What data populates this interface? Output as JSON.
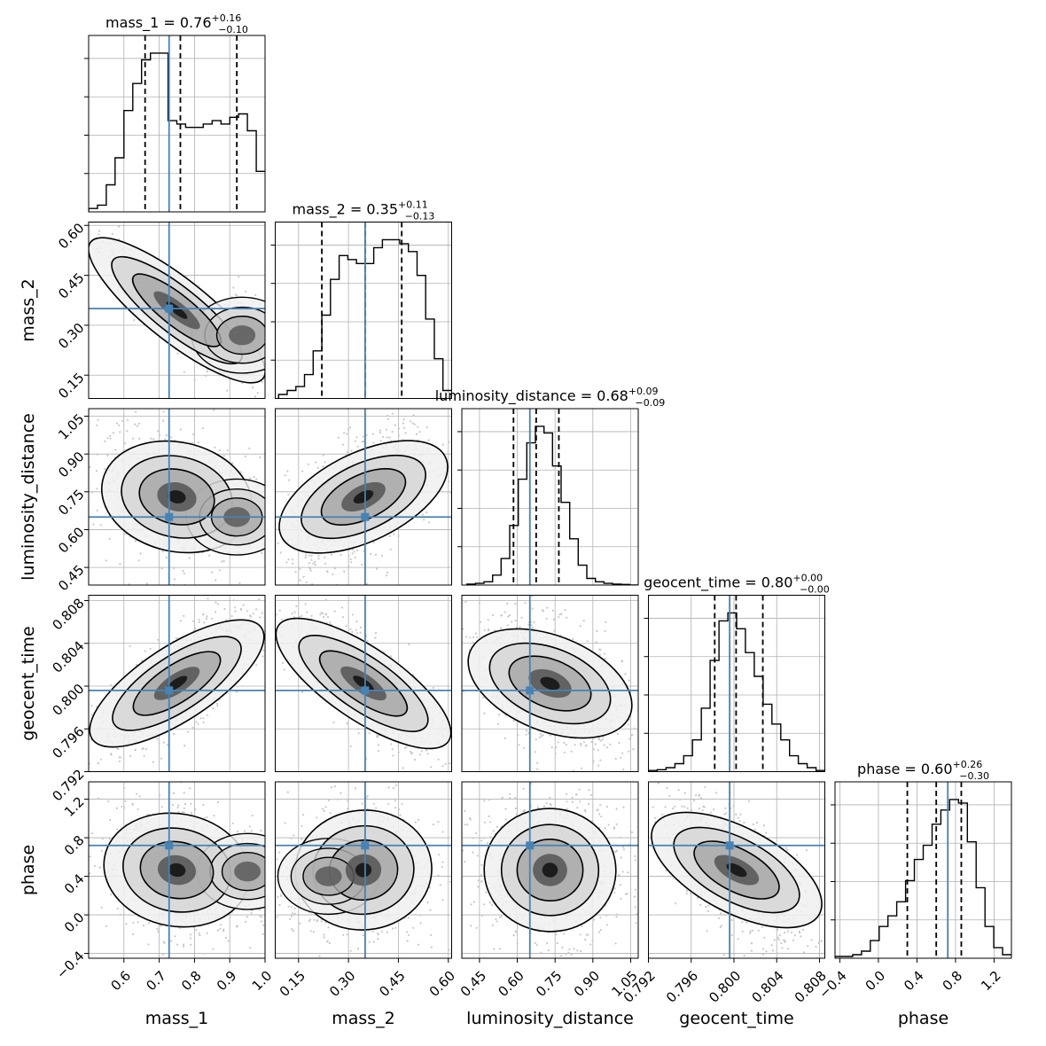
{
  "chart_data": {
    "type": "corner",
    "parameters": [
      "mass_1",
      "mass_2",
      "luminosity_distance",
      "geocent_time",
      "phase"
    ],
    "axis_labels": [
      "mass_1",
      "mass_2",
      "luminosity_distance",
      "geocent_time",
      "phase"
    ],
    "ranges": [
      [
        0.5,
        1.0
      ],
      [
        0.08,
        0.61
      ],
      [
        0.38,
        1.08
      ],
      [
        0.792,
        0.8085
      ],
      [
        -0.45,
        1.38
      ]
    ],
    "ticks": [
      [
        0.6,
        0.7,
        0.8,
        0.9,
        1.0
      ],
      [
        0.15,
        0.3,
        0.45,
        0.6
      ],
      [
        0.45,
        0.6,
        0.75,
        0.9,
        1.05
      ],
      [
        0.792,
        0.796,
        0.8,
        0.804,
        0.808
      ],
      [
        -0.4,
        0.0,
        0.4,
        0.8,
        1.2
      ]
    ],
    "tick_labels": [
      [
        "0.6",
        "0.7",
        "0.8",
        "0.9",
        "1.0"
      ],
      [
        "0.15",
        "0.30",
        "0.45",
        "0.60"
      ],
      [
        "0.45",
        "0.60",
        "0.75",
        "0.90",
        "1.05"
      ],
      [
        "0.792",
        "0.796",
        "0.800",
        "0.804",
        "0.808"
      ],
      [
        "−0.4",
        "0.0",
        "0.4",
        "0.8",
        "1.2"
      ]
    ],
    "titles": [
      {
        "name": "mass_1",
        "median": "0.76",
        "plus": "+0.16",
        "minus": "−0.10"
      },
      {
        "name": "mass_2",
        "median": "0.35",
        "plus": "+0.11",
        "minus": "−0.13"
      },
      {
        "name": "luminosity_distance",
        "median": "0.68",
        "plus": "+0.09",
        "minus": "−0.09"
      },
      {
        "name": "geocent_time",
        "median": "0.80",
        "plus": "+0.00",
        "minus": "−0.00"
      },
      {
        "name": "phase",
        "median": "0.60",
        "plus": "+0.26",
        "minus": "−0.30"
      }
    ],
    "truths": [
      0.728,
      0.35,
      0.65,
      0.7996,
      0.72
    ],
    "quantiles": [
      [
        0.66,
        0.76,
        0.92
      ],
      [
        0.22,
        0.35,
        0.46
      ],
      [
        0.585,
        0.675,
        0.765
      ],
      [
        0.7982,
        0.8002,
        0.8027
      ],
      [
        0.3,
        0.6,
        0.86
      ]
    ],
    "histograms": [
      {
        "edges_start": 0.5,
        "edges_end": 1.0,
        "counts": [
          1,
          2,
          8,
          16,
          30,
          38,
          45,
          47,
          47,
          27,
          26,
          25,
          25,
          26,
          27,
          26,
          28,
          29,
          24,
          12
        ]
      },
      {
        "edges_start": 0.09,
        "edges_end": 0.61,
        "counts": [
          1,
          2,
          3,
          6,
          12,
          21,
          30,
          36,
          35,
          34,
          34,
          38,
          40,
          40,
          39,
          37,
          31,
          20,
          10,
          2
        ]
      },
      {
        "edges_start": 0.4,
        "edges_end": 1.08,
        "counts": [
          0.3,
          0.5,
          1,
          3,
          8,
          18,
          32,
          43,
          48,
          46,
          36,
          25,
          14,
          6,
          2,
          1,
          0.5,
          0.3,
          0.2,
          0
        ]
      },
      {
        "edges_start": 0.792,
        "edges_end": 0.8085,
        "counts": [
          0.3,
          0.5,
          1,
          2,
          4,
          8,
          16,
          28,
          38,
          40,
          36,
          30,
          24,
          17,
          12,
          8,
          4,
          2,
          1,
          0.3
        ]
      },
      {
        "edges_start": -0.45,
        "edges_end": 1.38,
        "counts": [
          0.5,
          0.5,
          1,
          2,
          5,
          9,
          12,
          16,
          22,
          28,
          32,
          38,
          42,
          45,
          44,
          33,
          20,
          9,
          3,
          1
        ]
      }
    ],
    "densities": [
      {
        "row": 1,
        "col": 0,
        "corr": -0.92,
        "secondary": {
          "x": 0.935,
          "y": 0.27,
          "weight": 0.55
        }
      },
      {
        "row": 2,
        "col": 0,
        "corr": -0.25,
        "secondary": {
          "x": 0.92,
          "y": 0.65,
          "weight": 0.35
        }
      },
      {
        "row": 2,
        "col": 1,
        "corr": 0.55,
        "secondary": null
      },
      {
        "row": 3,
        "col": 0,
        "corr": 0.75,
        "secondary": null
      },
      {
        "row": 3,
        "col": 1,
        "corr": -0.78,
        "secondary": null
      },
      {
        "row": 3,
        "col": 2,
        "corr": -0.45,
        "secondary": null
      },
      {
        "row": 4,
        "col": 0,
        "corr": -0.2,
        "secondary": {
          "x": 0.95,
          "y": 0.45,
          "weight": 0.45
        }
      },
      {
        "row": 4,
        "col": 1,
        "corr": 0.1,
        "secondary": {
          "x": 0.24,
          "y": 0.4,
          "weight": 0.6
        }
      },
      {
        "row": 4,
        "col": 2,
        "corr": -0.05,
        "secondary": null
      },
      {
        "row": 4,
        "col": 3,
        "corr": -0.6,
        "secondary": null
      }
    ],
    "colors": {
      "truth": "#4682b4",
      "hist": "#000000",
      "quantile": "#000000",
      "grid": "#b0b0b0",
      "points": "#c8c8c8"
    },
    "grid": true
  }
}
